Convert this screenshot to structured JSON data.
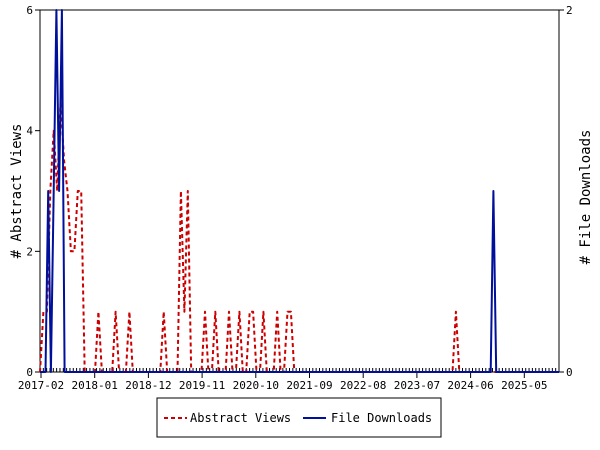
{
  "chart_data": {
    "type": "line",
    "x_tick_labels": [
      "2017-02",
      "2018-01",
      "2018-12",
      "2019-11",
      "2020-10",
      "2021-09",
      "2022-08",
      "2023-07",
      "2024-06",
      "2025-05"
    ],
    "ylabel_left": "# Abstract Views",
    "ylabel_right": "# File Downloads",
    "ylim_left": [
      0,
      6
    ],
    "ylim_right": [
      0,
      2
    ],
    "yticks_left": [
      "0",
      "2",
      "4",
      "6"
    ],
    "yticks_right": [
      "0",
      "2"
    ],
    "legend_position": "bottom-center",
    "grid": false,
    "series": [
      {
        "name": "Abstract Views",
        "axis": "left",
        "color": "#cc0000",
        "style": "dashed",
        "values": [
          0,
          1,
          1,
          3,
          4,
          3,
          4.5,
          3.5,
          3,
          2,
          2,
          3,
          3,
          0,
          0,
          0,
          0,
          1,
          0,
          0,
          0,
          0,
          1,
          0,
          0,
          0,
          1,
          0,
          0,
          0,
          0,
          0,
          0,
          0,
          0,
          0,
          1,
          0,
          0,
          0,
          0,
          3,
          1,
          3,
          0,
          0,
          0,
          0,
          1,
          0,
          0,
          1,
          0,
          0,
          0,
          1,
          0,
          0,
          1,
          0,
          0,
          1,
          1,
          0,
          0,
          1,
          0,
          0,
          0,
          1,
          0,
          0,
          1,
          1,
          0,
          0,
          0,
          0,
          0,
          0,
          0,
          0,
          0,
          0,
          0,
          0,
          0,
          0,
          0,
          0,
          0,
          0,
          0,
          0,
          0,
          0,
          0,
          0,
          0,
          0,
          0,
          0,
          0,
          0,
          0,
          0,
          0,
          0,
          0,
          0,
          0,
          0,
          0,
          0,
          0,
          0,
          0,
          0,
          0,
          0,
          0,
          1,
          0,
          0,
          0,
          0,
          0,
          0,
          0,
          0,
          0,
          0,
          0,
          0,
          0,
          0,
          0,
          0,
          0,
          0,
          0,
          0,
          0,
          0,
          0,
          0,
          0,
          0,
          0,
          0,
          0,
          0
        ]
      },
      {
        "name": "File Downloads",
        "axis": "right",
        "color": "#00109a",
        "style": "solid",
        "values": [
          0,
          0,
          0,
          1,
          0,
          1,
          2,
          1,
          2,
          0,
          0,
          0,
          0,
          0,
          0,
          0,
          0,
          0,
          0,
          0,
          0,
          0,
          0,
          0,
          0,
          0,
          0,
          0,
          0,
          0,
          0,
          0,
          0,
          0,
          0,
          0,
          0,
          0,
          0,
          0,
          0,
          0,
          0,
          0,
          0,
          0,
          0,
          0,
          0,
          0,
          0,
          0,
          0,
          0,
          0,
          0,
          0,
          0,
          0,
          0,
          0,
          0,
          0,
          0,
          0,
          0,
          0,
          0,
          0,
          0,
          0,
          0,
          0,
          0,
          0,
          0,
          0,
          0,
          0,
          0,
          0,
          0,
          0,
          0,
          0,
          0,
          0,
          0,
          0,
          0,
          0,
          0,
          0,
          0,
          0,
          0,
          0,
          0,
          0,
          0,
          0,
          0,
          0,
          0,
          0,
          0,
          0,
          0,
          0,
          0,
          0,
          0,
          0,
          0,
          0,
          0,
          0,
          0,
          0,
          0,
          0,
          0,
          0,
          0,
          0,
          0,
          0,
          0,
          0,
          0,
          0,
          0,
          0,
          0,
          0,
          0,
          0,
          0,
          0,
          0,
          0,
          0,
          0,
          0,
          0,
          0,
          0,
          0,
          0,
          0,
          0,
          0,
          0,
          0,
          0,
          0,
          0,
          0,
          0,
          0,
          0,
          0,
          0,
          0,
          0,
          0,
          1,
          0,
          0,
          0,
          0,
          0,
          0,
          0,
          0,
          0,
          0,
          0,
          0,
          0,
          0,
          0,
          0,
          0,
          0,
          0,
          0,
          0,
          0,
          0,
          0
        ]
      }
    ]
  }
}
